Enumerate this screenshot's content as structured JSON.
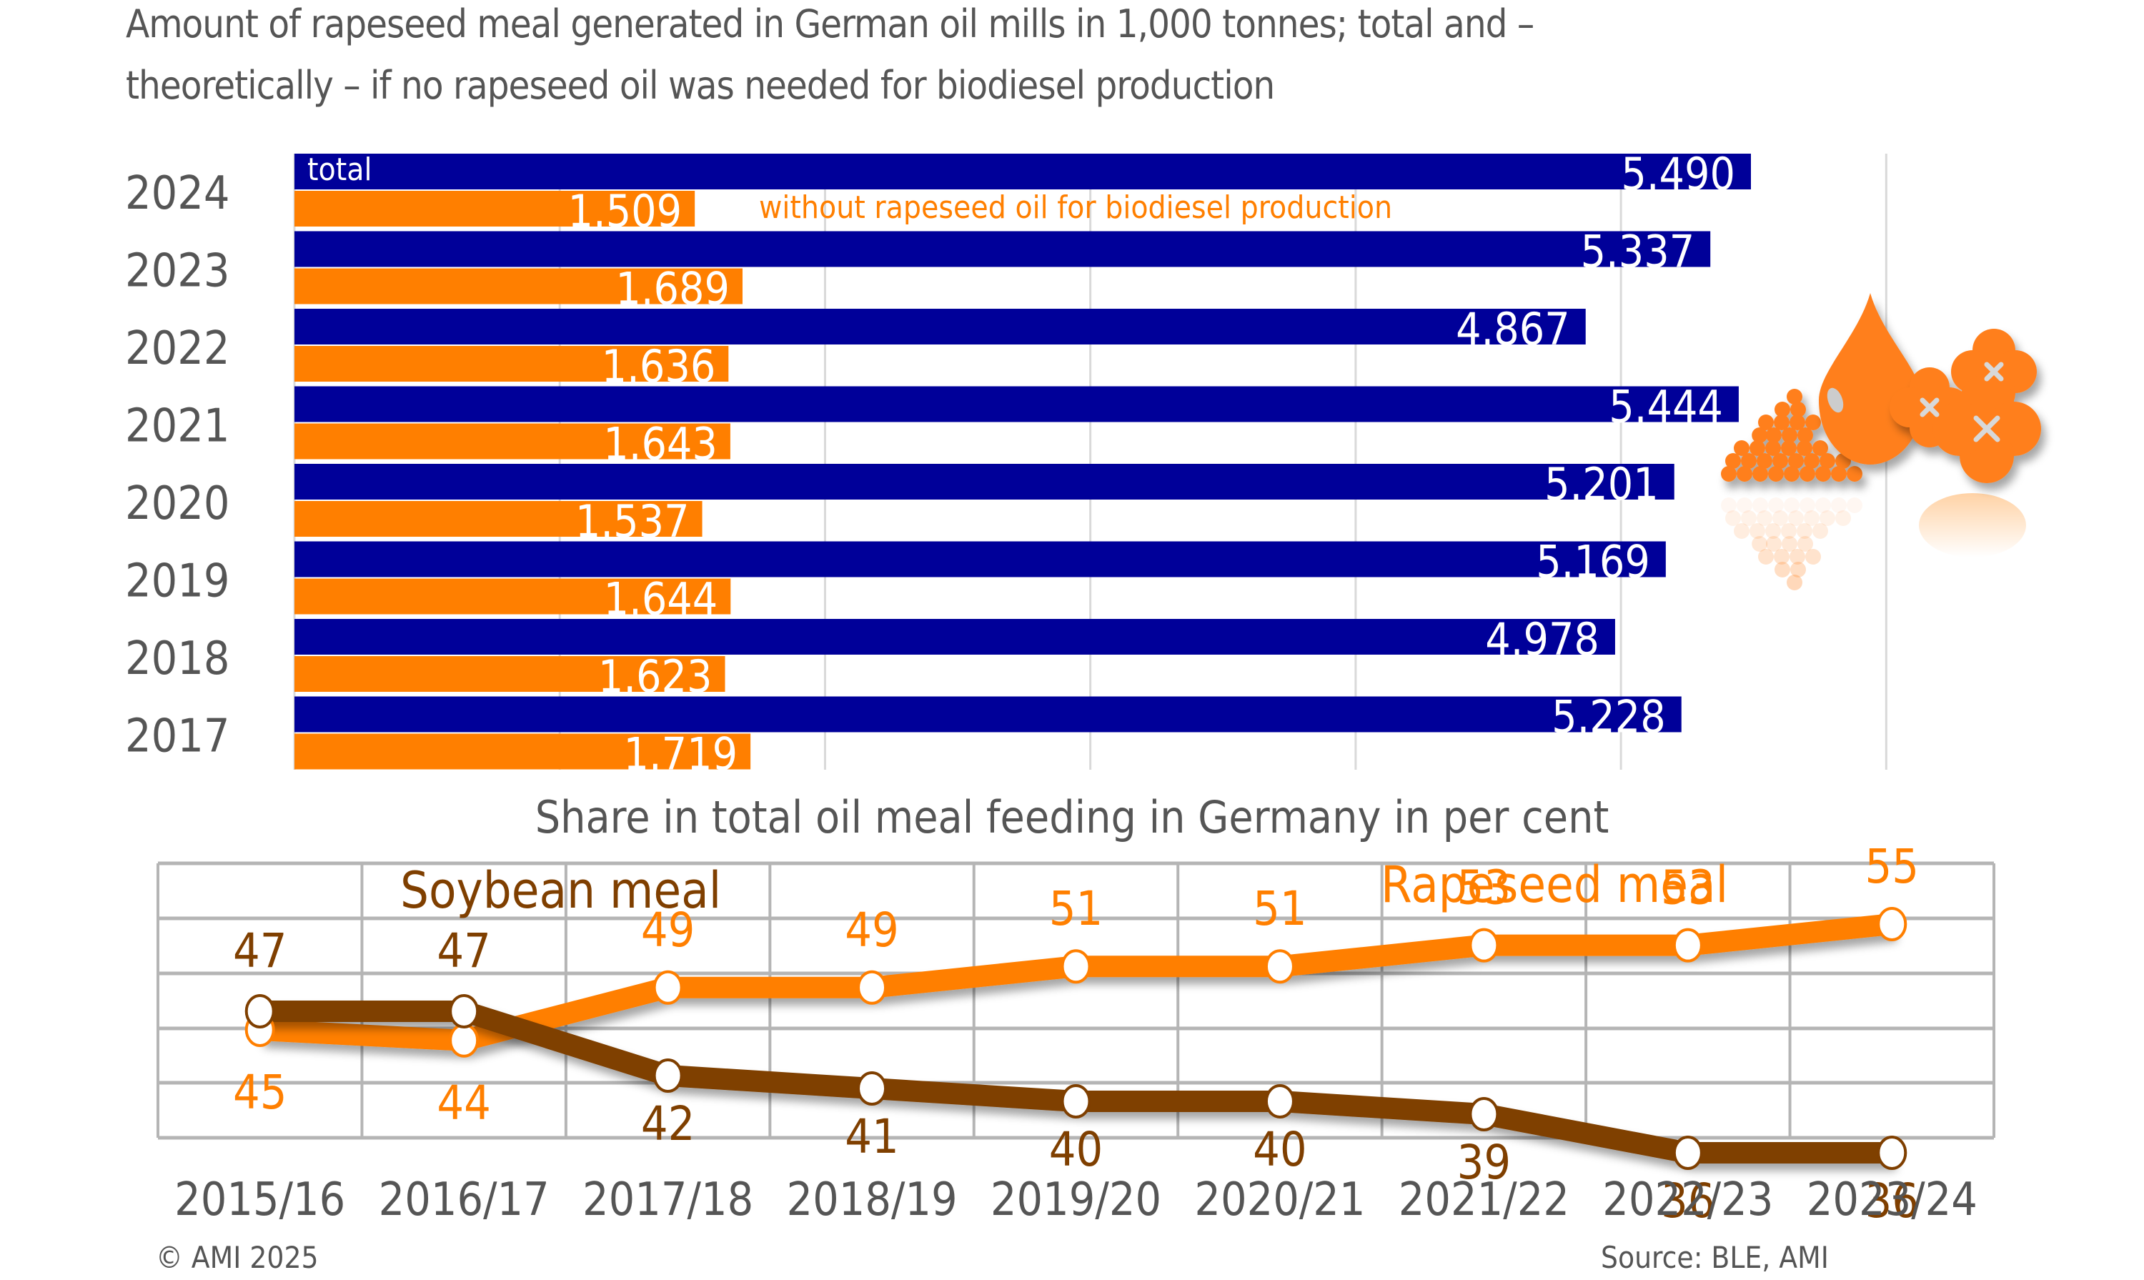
{
  "title_line1": "Amount of rapeseed meal generated in German oil mills in 1,000 tonnes; total and –",
  "title_line2": "theoretically – if no rapeseed oil was needed for biodiesel production",
  "footer": {
    "copyright": "© AMI 2025",
    "source": "Source: BLE, AMI"
  },
  "colors": {
    "total": "#000099",
    "without": "#FF7F00",
    "soybean": "#7F3F00",
    "rapeseed": "#FF7F00",
    "text": "#555555",
    "grid": "#BBBBBB"
  },
  "chart_data": [
    {
      "type": "bar",
      "orientation": "horizontal",
      "title": "Amount of rapeseed meal generated in German oil mills in 1,000 tonnes; total and – theoretically – if no rapeseed oil was needed for biodiesel production",
      "categories": [
        "2024",
        "2023",
        "2022",
        "2021",
        "2020",
        "2019",
        "2018",
        "2017"
      ],
      "series": [
        {
          "name": "total",
          "values": [
            5490,
            5337,
            4867,
            5444,
            5201,
            5169,
            4978,
            5228
          ],
          "labels": [
            "5.490",
            "5.337",
            "4.867",
            "5.444",
            "5.201",
            "5.169",
            "4.978",
            "5.228"
          ]
        },
        {
          "name": "without rapeseed oil for biodiesel production",
          "values": [
            1509,
            1689,
            1636,
            1643,
            1537,
            1644,
            1623,
            1719
          ],
          "labels": [
            "1.509",
            "1.689",
            "1.636",
            "1.643",
            "1.537",
            "1.644",
            "1.623",
            "1.719"
          ]
        }
      ],
      "xlim": [
        0,
        6000
      ],
      "gridlines": [
        1000,
        2000,
        3000,
        4000,
        5000,
        6000
      ],
      "grid": true
    },
    {
      "type": "line",
      "title": "Share in total oil meal feeding in Germany in per cent",
      "categories": [
        "2015/16",
        "2016/17",
        "2017/18",
        "2018/19",
        "2019/20",
        "2020/21",
        "2021/22",
        "2022/23",
        "2023/24"
      ],
      "series": [
        {
          "name": "Soybean meal",
          "values": [
            47,
            47,
            42,
            41,
            40,
            40,
            39,
            36,
            36
          ]
        },
        {
          "name": "Rapeseed meal",
          "values": [
            45,
            44,
            49,
            49,
            51,
            51,
            53,
            53,
            55
          ]
        }
      ],
      "ylim": [
        30,
        60
      ],
      "grid": true,
      "legend": "inline labels"
    }
  ]
}
